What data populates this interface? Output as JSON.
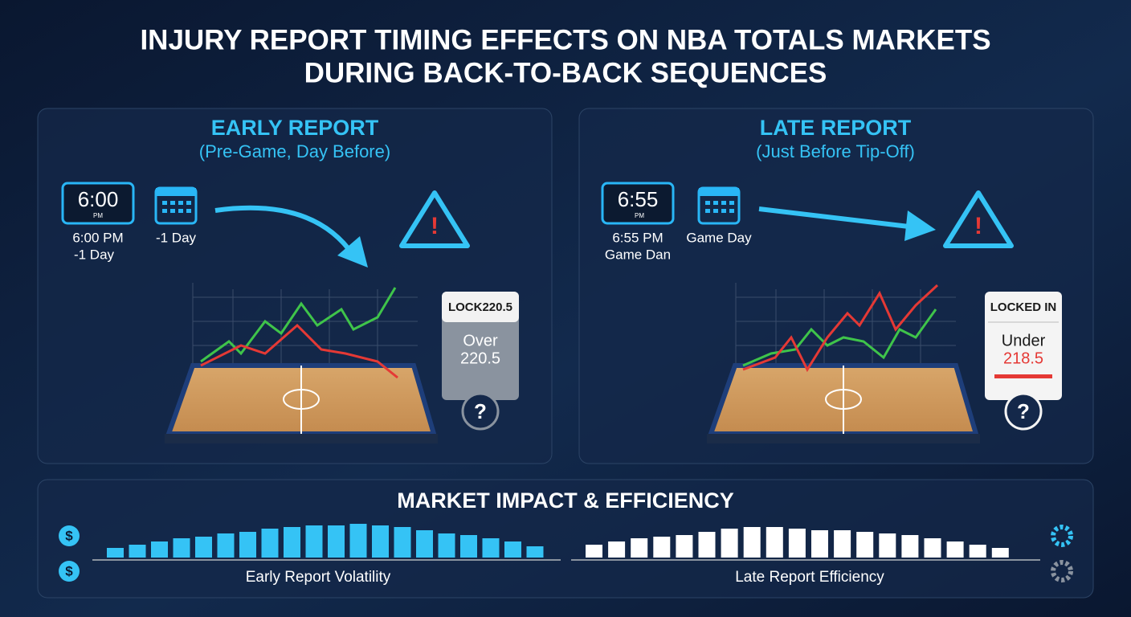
{
  "header": {
    "title_line1": "INJURY REPORT TIMING EFFECTS ON NBA TOTALS MARKETS",
    "title_line2": "DURING BACK-TO-BACK SEQUENCES"
  },
  "panels": [
    {
      "title": "EARLY REPORT",
      "subtitle": "(Pre-Game, Day Before)",
      "clock": "6:00",
      "clock_suffix": "PM",
      "time_label": [
        "6:00 PM",
        "-1 Day"
      ],
      "calendar_label": "-1 Day",
      "ticket": {
        "header": "LOCK220.5",
        "pick": "Over",
        "line": "220.5"
      }
    },
    {
      "title": "LATE REPORT",
      "subtitle": "(Just Before Tip-Off)",
      "clock": "6:55",
      "clock_suffix": "PM",
      "time_label": [
        "6:55 PM",
        "Game Dan"
      ],
      "calendar_label": "Game Day",
      "ticket": {
        "header": "LOCKED IN",
        "pick": "Under",
        "line": "218.5"
      }
    }
  ],
  "icons": {
    "alert": "!",
    "question": "?",
    "dollar": "$"
  },
  "footer": {
    "title": "MARKET IMPACT & EFFICIENCY",
    "charts": [
      {
        "label": "Early Report Volatility",
        "values": [
          12,
          16,
          20,
          24,
          26,
          30,
          32,
          36,
          38,
          40,
          40,
          42,
          40,
          38,
          34,
          30,
          28,
          24,
          20,
          14
        ]
      },
      {
        "label": "Late Report Efficiency",
        "values": [
          16,
          20,
          24,
          26,
          28,
          32,
          36,
          38,
          38,
          36,
          34,
          34,
          32,
          30,
          28,
          24,
          20,
          16,
          12
        ]
      }
    ]
  }
}
